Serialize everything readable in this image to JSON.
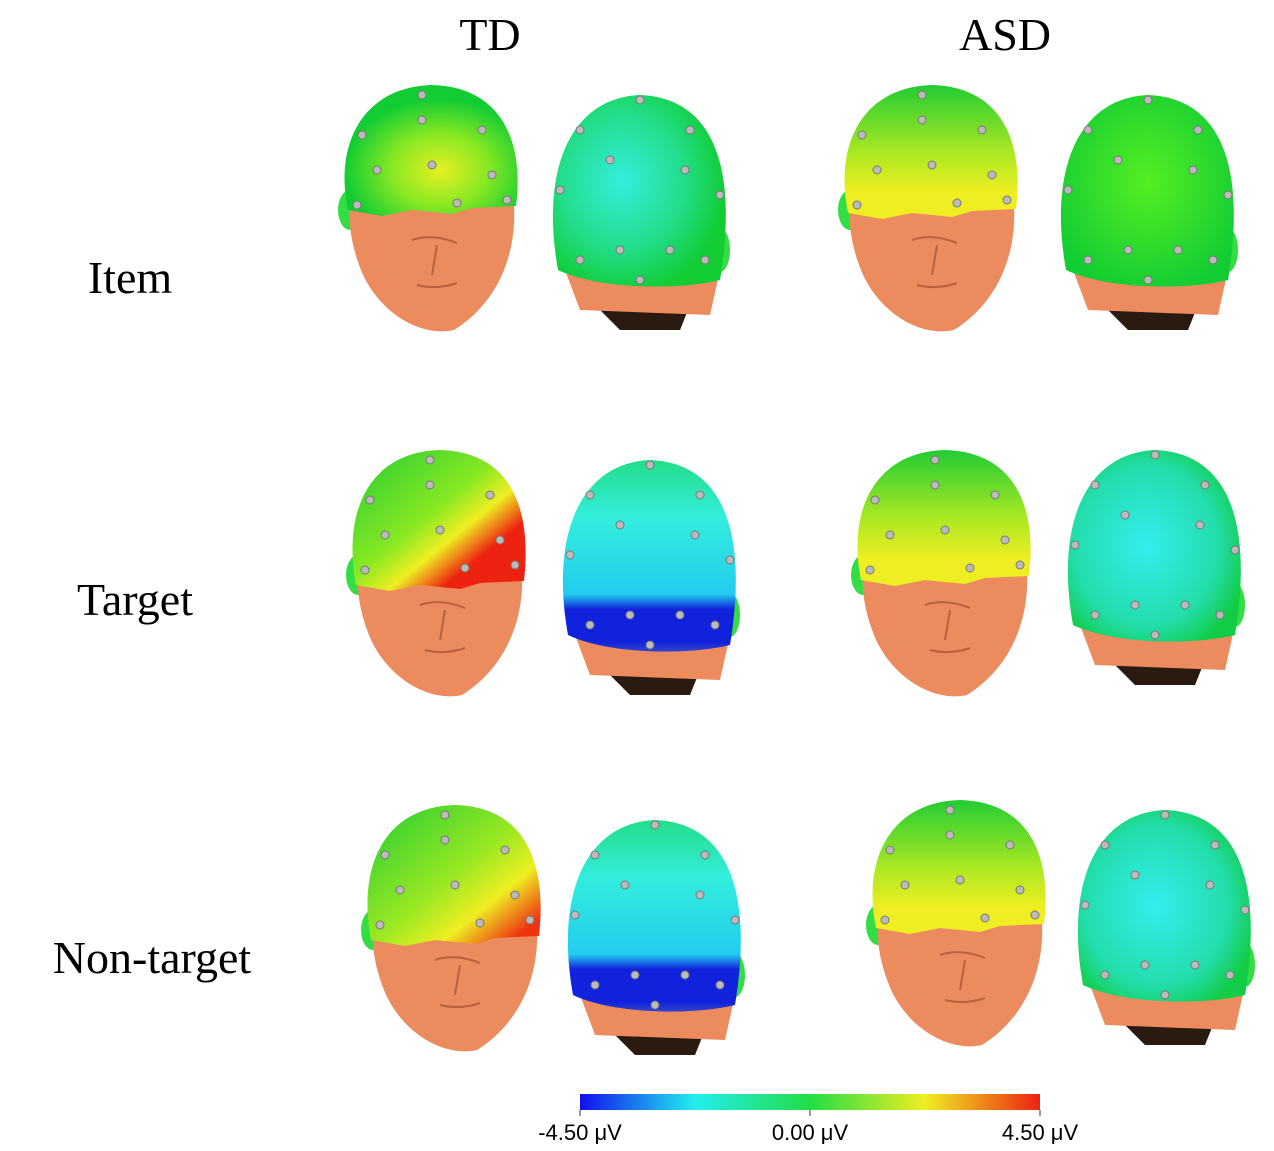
{
  "columns": [
    "TD",
    "ASD"
  ],
  "rows": [
    "Item",
    "Target",
    "Non-target"
  ],
  "colorbar": {
    "labels": [
      "-4.50 μV",
      "0.00 μV",
      "4.50 μV"
    ]
  }
}
